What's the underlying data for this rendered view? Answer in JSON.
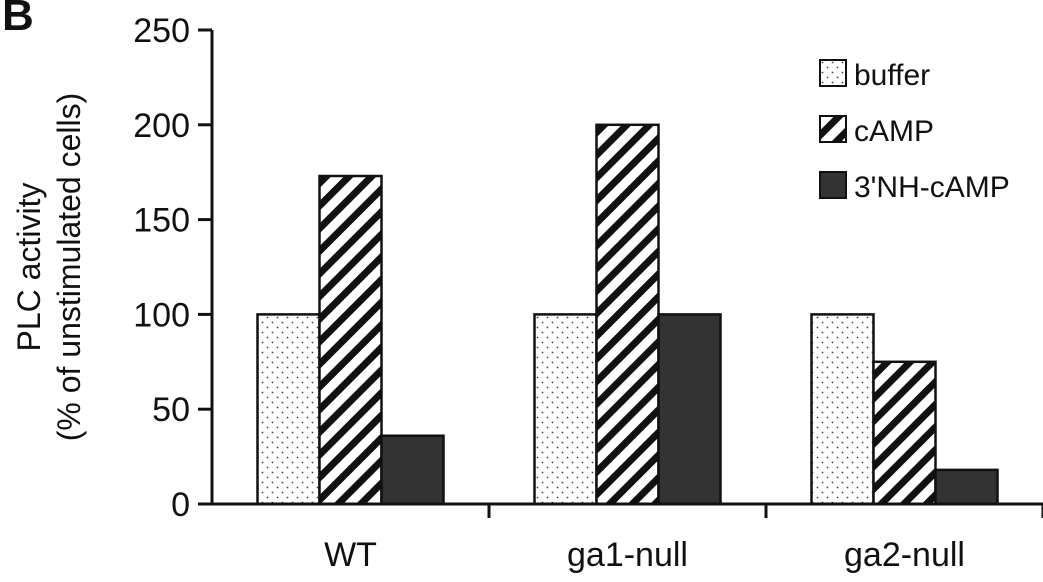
{
  "panel_label": "B",
  "chart_data": {
    "type": "bar",
    "categories": [
      "WT",
      "ga1-null",
      "ga2-null"
    ],
    "series": [
      {
        "name": "buffer",
        "values": [
          100,
          100,
          100
        ],
        "pattern": "dots"
      },
      {
        "name": "cAMP",
        "values": [
          173,
          200,
          75
        ],
        "pattern": "diagonal-stripes"
      },
      {
        "name": "3'NH-cAMP",
        "values": [
          36,
          100,
          18
        ],
        "pattern": "solid-dark"
      }
    ],
    "ylabel_line1": "PLC activity",
    "ylabel_line2": "(% of unstimulated cells)",
    "ylim": [
      0,
      250
    ],
    "yticks": [
      0,
      50,
      100,
      150,
      200,
      250
    ],
    "grid": false,
    "legend_position": "top-right",
    "colors": {
      "bar_outline": "#111111",
      "solid": "#333333",
      "pattern": "#111111",
      "background": "#ffffff"
    }
  }
}
